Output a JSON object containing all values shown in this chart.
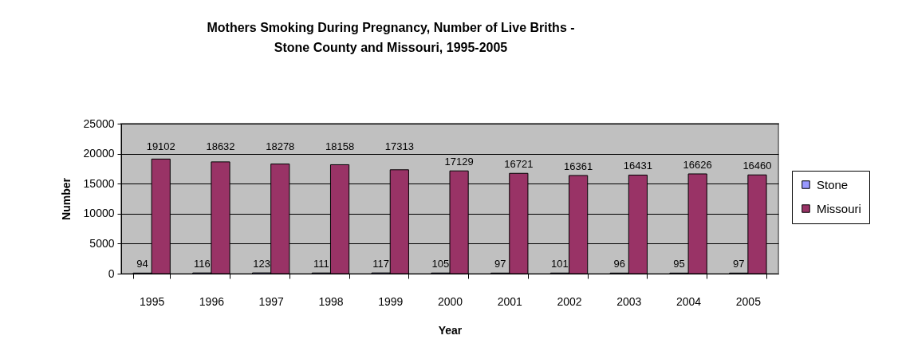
{
  "chart_data": {
    "type": "bar",
    "title": "Mothers Smoking During Pregnancy, Number of Live Briths -\nStone County and Missouri, 1995-2005",
    "xlabel": "Year",
    "ylabel": "Number",
    "categories": [
      "1995",
      "1996",
      "1997",
      "1998",
      "1999",
      "2000",
      "2001",
      "2002",
      "2003",
      "2004",
      "2005"
    ],
    "series": [
      {
        "name": "Stone",
        "color": "#9999ff",
        "values": [
          94,
          116,
          123,
          111,
          117,
          105,
          97,
          101,
          96,
          95,
          97
        ]
      },
      {
        "name": "Missouri",
        "color": "#993366",
        "values": [
          19102,
          18632,
          18278,
          18158,
          17313,
          17129,
          16721,
          16361,
          16431,
          16626,
          16460
        ]
      }
    ],
    "ylim": [
      0,
      25000
    ],
    "yticks": [
      0,
      5000,
      10000,
      15000,
      20000,
      25000
    ],
    "grid": "y",
    "legend": "right",
    "data_labels": true
  }
}
